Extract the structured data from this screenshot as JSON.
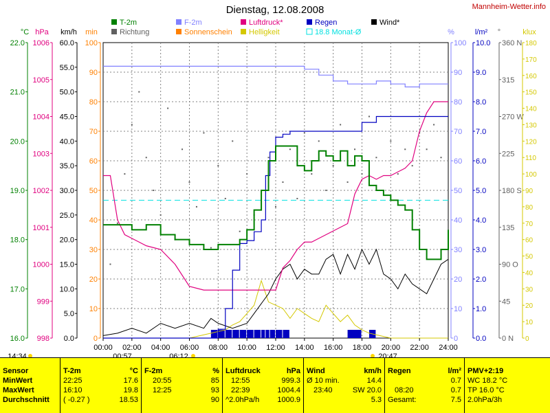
{
  "title": "Dienstag, 12.08.2008",
  "brand": "Mannheim-Wetter.info",
  "colors": {
    "temp": "#008000",
    "humid": "#8080ff",
    "press": "#e0007f",
    "rain": "#0000c0",
    "wind": "#000000",
    "dir": "#606060",
    "sun": "#ff8000",
    "light": "#d4c800",
    "avg": "#00e0e0",
    "grid": "#808080"
  },
  "legend": [
    {
      "label": "T-2m",
      "color": "#008000",
      "type": "fill"
    },
    {
      "label": "F-2m",
      "color": "#8080ff",
      "type": "fill"
    },
    {
      "label": "Luftdruck*",
      "color": "#e0007f",
      "type": "fill"
    },
    {
      "label": "Regen",
      "color": "#0000c0",
      "type": "fill"
    },
    {
      "label": "Wind*",
      "color": "#000000",
      "type": "fill"
    },
    {
      "label": "Richtung",
      "color": "#606060",
      "type": "fill"
    },
    {
      "label": "Sonnenschein",
      "color": "#ff8000",
      "type": "fill"
    },
    {
      "label": "Helligkeit",
      "color": "#d4c800",
      "type": "fill"
    },
    {
      "label": "18.8 Monat-Ø",
      "color": "#00e0e0",
      "type": "outline"
    }
  ],
  "axes": {
    "left": [
      {
        "unit": "°C",
        "color": "#008000",
        "ticks": [
          "22.0",
          "21.0",
          "20.0",
          "19.0",
          "18.0",
          "17.0",
          "16.0"
        ]
      },
      {
        "unit": "hPa",
        "color": "#e0007f",
        "ticks": [
          "1006",
          "1005",
          "1004",
          "1003",
          "1002",
          "1001",
          "1000",
          "999",
          "998"
        ]
      },
      {
        "unit": "km/h",
        "color": "#000000",
        "ticks": [
          "60.0",
          "55.0",
          "50.0",
          "45.0",
          "40.0",
          "35.0",
          "30.0",
          "25.0",
          "20.0",
          "15.0",
          "10.0",
          "5.0",
          "0.0"
        ]
      },
      {
        "unit": "min",
        "color": "#ff8000",
        "ticks": [
          "100",
          "90",
          "80",
          "70",
          "60",
          "50",
          "40",
          "30",
          "20",
          "10",
          "0"
        ]
      }
    ],
    "right": [
      {
        "unit": "%",
        "color": "#8080ff",
        "ticks": [
          "100",
          "90",
          "80",
          "70",
          "60",
          "50",
          "40",
          "30",
          "20",
          "10",
          "0"
        ]
      },
      {
        "unit": "l/m²",
        "color": "#0000c0",
        "ticks": [
          "10.0",
          "9.0",
          "8.0",
          "7.0",
          "6.0",
          "5.0",
          "4.0",
          "3.0",
          "2.0",
          "1.0",
          "0.0"
        ]
      },
      {
        "unit": "°",
        "color": "#606060",
        "ticks": [
          "360 N",
          "315",
          "270 W",
          "225",
          "180 S",
          "135",
          "90 O",
          "45",
          "0 N"
        ]
      },
      {
        "unit": "klux",
        "color": "#d4c800",
        "ticks": [
          "180",
          "170",
          "160",
          "150",
          "140",
          "130",
          "120",
          "110",
          "100",
          "90",
          "80",
          "70",
          "60",
          "50",
          "40",
          "30",
          "20",
          "10",
          "0"
        ]
      }
    ],
    "x_ticks": [
      "00:00",
      "02:00",
      "04:00",
      "06:00",
      "08:00",
      "10:00",
      "12:00",
      "14:00",
      "16:00",
      "18:00",
      "20:00",
      "22:00",
      "24:00"
    ]
  },
  "sun_events": {
    "sunrise": "06:12",
    "sunset": "20:47",
    "noon": "14:34",
    "moonrise": "00:57"
  },
  "chart_data": {
    "type": "line",
    "title": "Dienstag, 12.08.2008",
    "x_range": [
      0,
      24
    ],
    "monthly_avg_temp": 18.8,
    "series": [
      {
        "name": "T-2m",
        "unit": "°C",
        "range": [
          16,
          22
        ],
        "x": [
          0,
          1,
          2,
          3,
          4,
          5,
          6,
          7,
          7.5,
          8,
          8.5,
          9,
          9.5,
          10,
          10.5,
          11,
          11.5,
          12,
          12.5,
          13,
          13.5,
          14,
          14.5,
          15,
          15.5,
          16,
          16.5,
          17,
          17.5,
          18,
          18.5,
          19,
          19.5,
          20,
          20.5,
          21,
          21.5,
          22,
          22.5,
          23,
          23.5,
          24
        ],
        "y": [
          18.3,
          18.3,
          18.2,
          18.3,
          18.1,
          18.0,
          17.9,
          17.8,
          17.8,
          17.9,
          17.9,
          17.9,
          18.0,
          18.2,
          18.6,
          19.0,
          19.6,
          19.9,
          19.9,
          19.9,
          19.5,
          19.4,
          19.6,
          19.8,
          19.7,
          19.6,
          19.8,
          19.5,
          19.7,
          19.6,
          19.1,
          19.0,
          18.9,
          18.8,
          18.7,
          18.6,
          18.2,
          17.8,
          17.6,
          17.6,
          17.8,
          18.2
        ]
      },
      {
        "name": "F-2m",
        "unit": "%",
        "range": [
          0,
          100
        ],
        "x": [
          0,
          2,
          4,
          6,
          8,
          10,
          12,
          13,
          14,
          15,
          16,
          17,
          18,
          19,
          20,
          21,
          22,
          23,
          24
        ],
        "y": [
          92,
          92,
          92,
          92,
          92,
          92,
          92,
          92,
          91,
          89,
          87,
          86,
          86,
          87,
          86,
          85,
          86,
          86,
          86
        ]
      },
      {
        "name": "Luftdruck*",
        "unit": "hPa",
        "range": [
          998,
          1006
        ],
        "x": [
          0,
          0.5,
          1,
          1.5,
          2,
          2.5,
          3,
          4,
          5,
          6,
          7,
          8,
          9,
          10,
          11,
          11.5,
          12,
          12.5,
          13,
          13.5,
          14,
          14.5,
          15,
          16,
          16.5,
          17,
          17.5,
          18,
          18.5,
          19,
          19.5,
          20,
          20.5,
          21,
          21.5,
          22,
          22.5,
          23,
          23.5,
          24
        ],
        "y": [
          1002.4,
          1002.4,
          1001.2,
          1000.8,
          1000.7,
          1000.6,
          1000.5,
          1000.4,
          1000.0,
          999.4,
          999.3,
          999.3,
          999.3,
          999.3,
          999.3,
          999.3,
          999.3,
          999.9,
          1000.1,
          1000.4,
          1000.6,
          1000.6,
          1000.7,
          1000.9,
          1001.0,
          1001.1,
          1001.9,
          1002.3,
          1002.4,
          1002.3,
          1002.4,
          1002.4,
          1002.5,
          1002.6,
          1002.8,
          1003.6,
          1004.1,
          1004.4,
          1004.4,
          1004.4
        ]
      },
      {
        "name": "Regen",
        "unit": "l/m²",
        "range": [
          0,
          10
        ],
        "x": [
          0,
          7.5,
          8,
          8.5,
          9,
          9.5,
          10,
          10.5,
          11,
          11.3,
          11.6,
          12,
          12.5,
          13,
          13.5,
          14,
          15,
          16,
          17,
          18,
          18.5,
          19,
          20,
          21,
          22,
          23,
          24
        ],
        "y": [
          0,
          0,
          0.3,
          1.0,
          2.3,
          3.2,
          3.3,
          3.6,
          4.0,
          5.5,
          6.3,
          6.8,
          6.9,
          7.0,
          7.0,
          7.0,
          7.0,
          7.0,
          7.0,
          7.3,
          7.3,
          7.5,
          7.5,
          7.5,
          7.5,
          7.5,
          7.5
        ]
      },
      {
        "name": "Wind*",
        "unit": "km/h",
        "range": [
          0,
          60
        ],
        "x": [
          0,
          1,
          2,
          3,
          4,
          5,
          6,
          7,
          7.5,
          8,
          9,
          10,
          10.5,
          11,
          11.5,
          12,
          12.5,
          13,
          13.5,
          14,
          14.5,
          15,
          15.5,
          16,
          16.5,
          17,
          17.5,
          18,
          18.5,
          19,
          19.5,
          20,
          20.5,
          21,
          21.5,
          22,
          22.5,
          23,
          23.5,
          24
        ],
        "y": [
          0.5,
          1,
          2,
          1,
          3,
          2,
          3,
          2,
          4,
          3,
          2,
          3,
          5,
          7,
          9,
          12,
          14,
          15,
          12,
          14,
          13,
          13,
          16,
          17,
          13,
          17,
          14,
          18,
          15,
          18,
          13,
          12,
          10,
          13,
          11,
          10,
          9,
          12,
          15,
          16
        ]
      },
      {
        "name": "Helligkeit",
        "unit": "klux",
        "range": [
          0,
          180
        ],
        "x": [
          0,
          5.5,
          6,
          6.5,
          7,
          7.5,
          8,
          8.5,
          9,
          9.5,
          10,
          10.5,
          11,
          11.5,
          12,
          12.5,
          13,
          13.5,
          14,
          14.5,
          15,
          15.5,
          16,
          16.5,
          17,
          17.5,
          18,
          18.5,
          19,
          19.5,
          20,
          20.5,
          24
        ],
        "y": [
          0,
          0,
          0,
          1,
          2,
          3,
          4,
          5,
          8,
          10,
          15,
          20,
          35,
          22,
          20,
          18,
          12,
          18,
          15,
          12,
          10,
          20,
          15,
          10,
          14,
          8,
          5,
          3,
          2,
          1,
          0,
          0,
          0
        ]
      },
      {
        "name": "Richtung",
        "unit": "°",
        "range": [
          0,
          360
        ],
        "x": [
          0.5,
          1,
          1.5,
          2,
          2.5,
          3,
          3.5,
          4,
          4.5,
          5,
          5.5,
          6,
          6.5,
          7,
          7.5,
          8,
          8.5,
          9,
          9.5,
          10,
          10.5,
          11,
          11.5,
          12,
          12.5,
          13,
          13.5,
          14,
          14.5,
          15,
          15.5,
          16,
          16.5,
          17,
          17.5,
          18,
          18.5,
          19,
          19.5,
          20,
          20.5,
          21,
          21.5,
          22,
          22.5,
          23,
          23.5
        ],
        "y": [
          90,
          140,
          200,
          260,
          300,
          220,
          180,
          150,
          280,
          120,
          230,
          190,
          160,
          250,
          110,
          210,
          170,
          240,
          130,
          200,
          150,
          180,
          220,
          160,
          190,
          230,
          170,
          250,
          200,
          240,
          180,
          210,
          260,
          190,
          230,
          200,
          270,
          220,
          180,
          240,
          200,
          230,
          210,
          250,
          230,
          260,
          220
        ]
      }
    ]
  },
  "table": {
    "sensor": {
      "head": "Sensor",
      "rows": [
        "MinWert",
        "MaxWert",
        "Durchschnitt"
      ]
    },
    "temp": {
      "head": "T-2m",
      "unit": "°C",
      "rows": [
        [
          "22:25",
          "17.6"
        ],
        [
          "16:10",
          "19.8"
        ],
        [
          "( -0.27 )",
          "18.53"
        ]
      ]
    },
    "humid": {
      "head": "F-2m",
      "unit": "%",
      "rows": [
        [
          "20:55",
          "85"
        ],
        [
          "12:25",
          "93"
        ],
        [
          "",
          "90"
        ]
      ]
    },
    "press": {
      "head": "Luftdruck",
      "unit": "hPa",
      "rows": [
        [
          "12:55",
          "999.3"
        ],
        [
          "22:39",
          "1004.4"
        ],
        [
          "^2.0hPa/h",
          "1000.9"
        ]
      ]
    },
    "wind": {
      "head": "Wind",
      "unit": "km/h",
      "rows": [
        [
          "Ø 10 min.",
          "14.4"
        ],
        [
          "23:40",
          "SW 20.0"
        ],
        [
          "",
          "5.3"
        ]
      ]
    },
    "rain": {
      "head": "Regen",
      "unit": "l/m²",
      "rows": [
        [
          "",
          "0.7"
        ],
        [
          "08:20",
          "0.7"
        ],
        [
          "Gesamt:",
          "7.5"
        ]
      ]
    },
    "pmv": {
      "head": "PMV+2:19",
      "rows": [
        "WC 18.2 °C",
        "TP 16.0 °C",
        "2.0hPa/3h"
      ]
    }
  }
}
